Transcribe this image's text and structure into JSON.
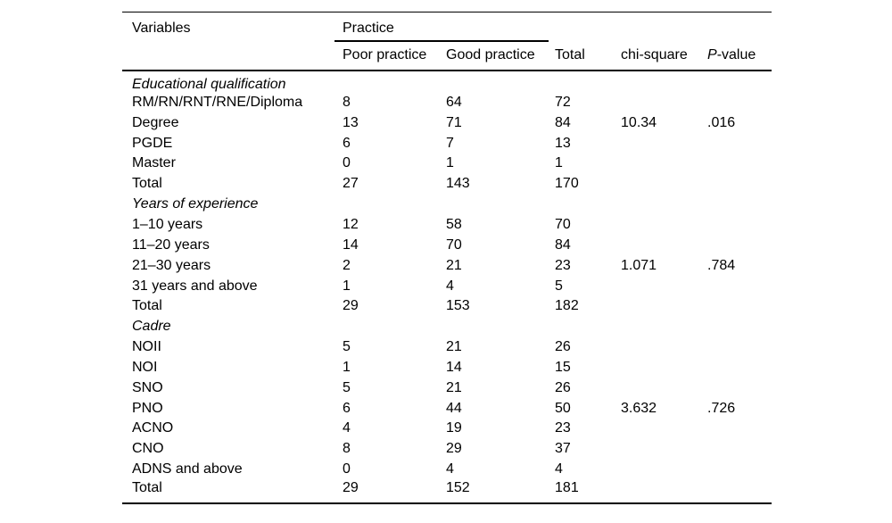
{
  "page": {
    "background_color": "#ffffff",
    "text_color": "#000000",
    "rule_color": "#000000"
  },
  "table": {
    "header": {
      "variables": "Variables",
      "practice_group": "Practice",
      "poor": "Poor practice",
      "good": "Good practice",
      "total": "Total",
      "chi_square": "chi-square",
      "p_value": {
        "italic": "P",
        "rest": "-value"
      }
    },
    "sections": [
      {
        "label": "Educational qualification",
        "rows": [
          {
            "label": "RM/RN/RNT/RNE/Diploma",
            "poor": "8",
            "good": "64",
            "total": "72",
            "chi": "",
            "p": ""
          },
          {
            "label": "Degree",
            "poor": "13",
            "good": "71",
            "total": "84",
            "chi": "10.34",
            "p": ".016"
          },
          {
            "label": "PGDE",
            "poor": "6",
            "good": "7",
            "total": "13",
            "chi": "",
            "p": ""
          },
          {
            "label": "Master",
            "poor": "0",
            "good": "1",
            "total": "1",
            "chi": "",
            "p": ""
          },
          {
            "label": "Total",
            "poor": "27",
            "good": "143",
            "total": "170",
            "chi": "",
            "p": ""
          }
        ]
      },
      {
        "label": "Years of experience",
        "rows": [
          {
            "label": "1–10 years",
            "poor": "12",
            "good": "58",
            "total": "70",
            "chi": "",
            "p": ""
          },
          {
            "label": "11–20 years",
            "poor": "14",
            "good": "70",
            "total": "84",
            "chi": "",
            "p": ""
          },
          {
            "label": "21–30 years",
            "poor": "2",
            "good": "21",
            "total": "23",
            "chi": "1.071",
            "p": ".784"
          },
          {
            "label": "31 years and above",
            "poor": "1",
            "good": "4",
            "total": "5",
            "chi": "",
            "p": ""
          },
          {
            "label": "Total",
            "poor": "29",
            "good": "153",
            "total": "182",
            "chi": "",
            "p": ""
          }
        ]
      },
      {
        "label": "Cadre",
        "rows": [
          {
            "label": "NOII",
            "poor": "5",
            "good": "21",
            "total": "26",
            "chi": "",
            "p": ""
          },
          {
            "label": "NOI",
            "poor": "1",
            "good": "14",
            "total": "15",
            "chi": "",
            "p": ""
          },
          {
            "label": "SNO",
            "poor": "5",
            "good": "21",
            "total": "26",
            "chi": "",
            "p": ""
          },
          {
            "label": "PNO",
            "poor": "6",
            "good": "44",
            "total": "50",
            "chi": "3.632",
            "p": ".726"
          },
          {
            "label": "ACNO",
            "poor": "4",
            "good": "19",
            "total": "23",
            "chi": "",
            "p": ""
          },
          {
            "label": "CNO",
            "poor": "8",
            "good": "29",
            "total": "37",
            "chi": "",
            "p": ""
          },
          {
            "label": "ADNS and above",
            "poor": "0",
            "good": "4",
            "total": "4",
            "chi": "",
            "p": ""
          },
          {
            "label": "Total",
            "poor": "29",
            "good": "152",
            "total": "181",
            "chi": "",
            "p": ""
          }
        ]
      }
    ]
  }
}
